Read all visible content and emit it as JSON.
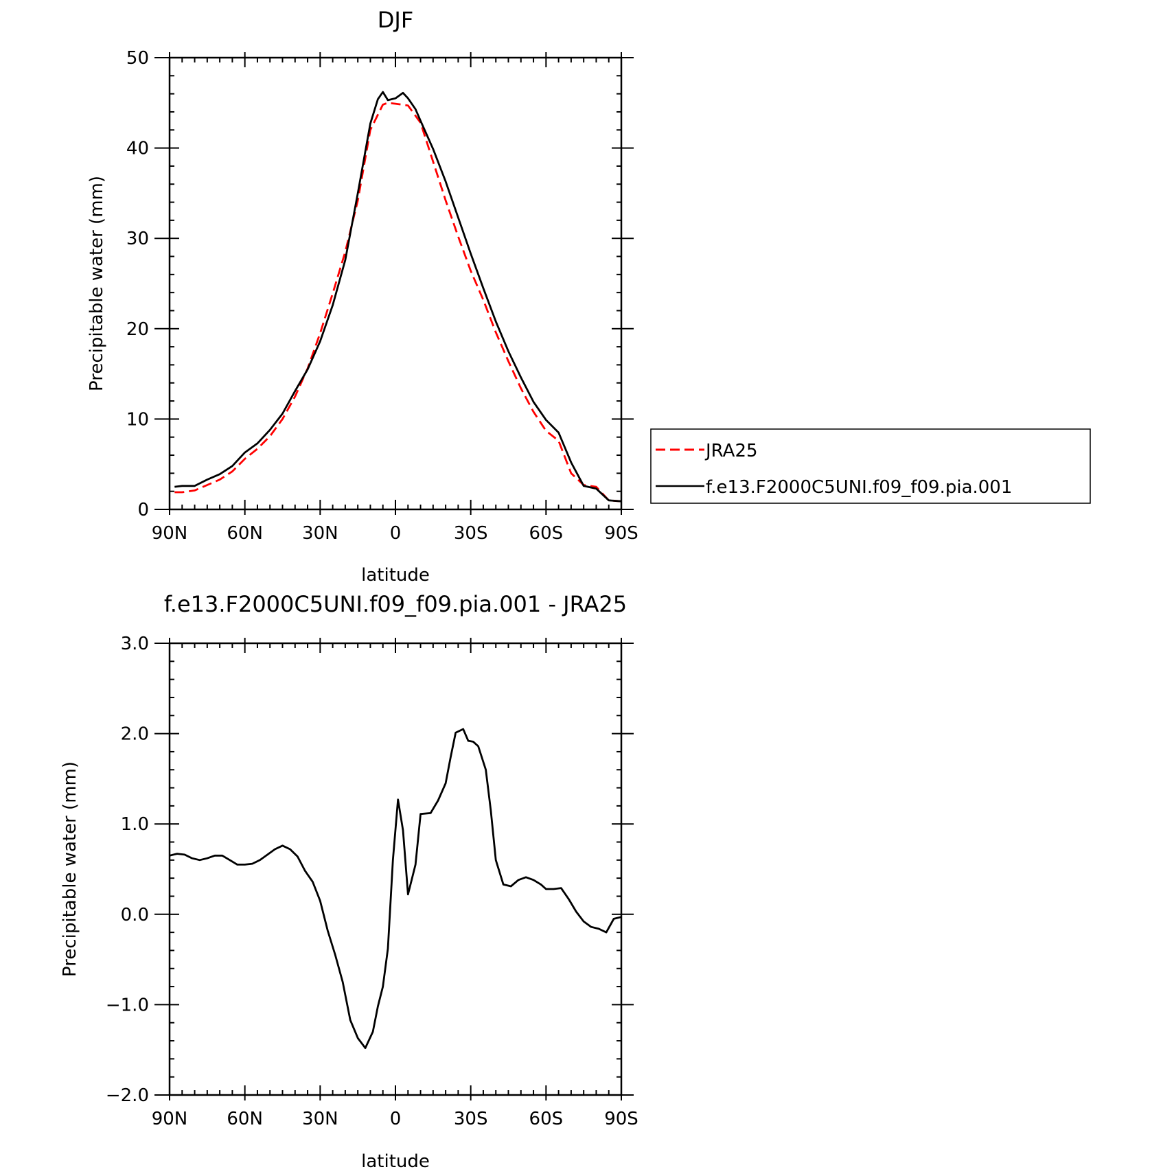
{
  "chart_data": [
    {
      "type": "line",
      "title": "DJF",
      "xlabel": "latitude",
      "ylabel": "Precipitable water (mm)",
      "xlim": [
        90,
        -90
      ],
      "ylim": [
        0,
        50
      ],
      "x_ticks": [
        90,
        60,
        30,
        0,
        -30,
        -60,
        -90
      ],
      "x_tick_labels": [
        "90N",
        "60N",
        "30N",
        "0",
        "30S",
        "60S",
        "90S"
      ],
      "y_ticks": [
        0,
        10,
        20,
        30,
        40,
        50
      ],
      "y_tick_labels": [
        "0",
        "10",
        "20",
        "30",
        "40",
        "50"
      ],
      "legend_position": "right",
      "series": [
        {
          "name": "JRA25",
          "color": "#ff0000",
          "style": "dashed",
          "x": [
            88,
            85,
            80,
            75,
            70,
            65,
            60,
            55,
            50,
            45,
            40,
            35,
            30,
            25,
            20,
            15,
            10,
            5,
            3,
            0,
            -5,
            -10,
            -15,
            -20,
            -25,
            -30,
            -35,
            -40,
            -45,
            -50,
            -55,
            -60,
            -65,
            -70,
            -75,
            -80,
            -85,
            -90
          ],
          "y": [
            1.9,
            1.9,
            2.1,
            2.7,
            3.3,
            4.2,
            5.6,
            6.7,
            8.1,
            10.0,
            12.5,
            15.6,
            19.5,
            23.9,
            28.5,
            34.2,
            42.0,
            44.8,
            45.0,
            44.9,
            44.7,
            42.8,
            38.5,
            34.2,
            30.2,
            26.4,
            23.2,
            19.6,
            16.4,
            13.4,
            10.8,
            8.7,
            7.6,
            4.0,
            2.7,
            2.5,
            1.0,
            0.9
          ]
        },
        {
          "name": "f.e13.F2000C5UNI.f09_f09.pia.001",
          "color": "#000000",
          "style": "solid",
          "x": [
            88,
            85,
            80,
            75,
            70,
            65,
            60,
            55,
            50,
            45,
            40,
            35,
            30,
            25,
            20,
            15,
            10,
            7,
            5,
            3,
            0,
            -3,
            -5,
            -8,
            -10,
            -15,
            -20,
            -25,
            -30,
            -35,
            -40,
            -45,
            -50,
            -55,
            -60,
            -65,
            -70,
            -75,
            -80,
            -85,
            -90
          ],
          "y": [
            2.5,
            2.6,
            2.6,
            3.3,
            3.9,
            4.8,
            6.3,
            7.3,
            8.8,
            10.6,
            13.1,
            15.5,
            18.6,
            22.6,
            27.6,
            35.0,
            42.7,
            45.4,
            46.2,
            45.3,
            45.5,
            46.1,
            45.5,
            44.3,
            43.0,
            39.9,
            36.3,
            32.3,
            28.3,
            24.5,
            20.8,
            17.5,
            14.6,
            11.9,
            9.9,
            8.5,
            5.2,
            2.6,
            2.3,
            1.0,
            0.9
          ]
        }
      ]
    },
    {
      "type": "line",
      "title": "f.e13.F2000C5UNI.f09_f09.pia.001 - JRA25",
      "xlabel": "latitude",
      "ylabel": "Precipitable water (mm)",
      "xlim": [
        90,
        -90
      ],
      "ylim": [
        -2.0,
        3.0
      ],
      "x_ticks": [
        90,
        60,
        30,
        0,
        -30,
        -60,
        -90
      ],
      "x_tick_labels": [
        "90N",
        "60N",
        "30N",
        "0",
        "30S",
        "60S",
        "90S"
      ],
      "y_ticks": [
        -2.0,
        -1.0,
        0.0,
        1.0,
        2.0,
        3.0
      ],
      "y_tick_labels": [
        "−2.0",
        "−1.0",
        "0.0",
        "1.0",
        "2.0",
        "3.0"
      ],
      "series": [
        {
          "color": "#000000",
          "style": "solid",
          "x": [
            90,
            87,
            84,
            81,
            78,
            75,
            72,
            69,
            66,
            63,
            60,
            57,
            54,
            51,
            48,
            45,
            42,
            39,
            36,
            33,
            30,
            27,
            24,
            21,
            18,
            15,
            12,
            9,
            7,
            5,
            3,
            1,
            -1,
            -3,
            -5,
            -8,
            -10,
            -14,
            -17,
            -20,
            -22,
            -24,
            -27,
            -29,
            -31,
            -33,
            -36,
            -38,
            -40,
            -43,
            -46,
            -49,
            -52,
            -55,
            -58,
            -60,
            -63,
            -66,
            -69,
            -72,
            -75,
            -78,
            -81,
            -84,
            -87,
            -90
          ],
          "y": [
            0.65,
            0.67,
            0.66,
            0.62,
            0.6,
            0.62,
            0.65,
            0.65,
            0.6,
            0.55,
            0.55,
            0.56,
            0.6,
            0.66,
            0.72,
            0.76,
            0.72,
            0.64,
            0.48,
            0.36,
            0.15,
            -0.18,
            -0.45,
            -0.75,
            -1.17,
            -1.37,
            -1.48,
            -1.3,
            -1.02,
            -0.8,
            -0.38,
            0.6,
            1.27,
            0.93,
            0.22,
            0.55,
            1.11,
            1.12,
            1.26,
            1.45,
            1.74,
            2.01,
            2.05,
            1.92,
            1.91,
            1.86,
            1.6,
            1.15,
            0.6,
            0.33,
            0.31,
            0.38,
            0.41,
            0.38,
            0.33,
            0.28,
            0.28,
            0.29,
            0.17,
            0.03,
            -0.08,
            -0.14,
            -0.16,
            -0.2,
            -0.05,
            -0.03
          ]
        }
      ]
    }
  ]
}
